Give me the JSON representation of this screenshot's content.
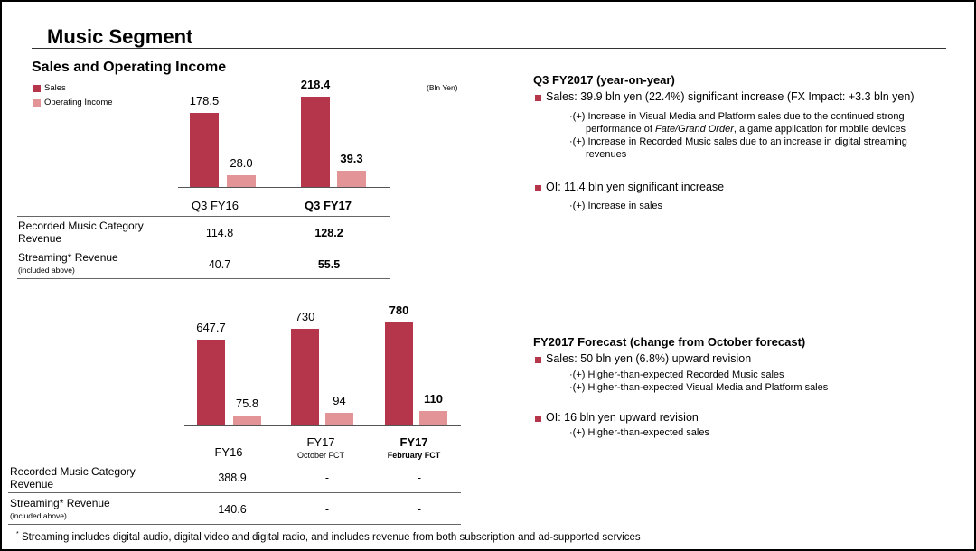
{
  "title": "Music Segment",
  "subtitle": "Sales and Operating Income",
  "legend": {
    "sales": "Sales",
    "oi": "Operating Income"
  },
  "unit": "(Bln Yen)",
  "colors": {
    "sales": "#b5364a",
    "oi": "#e39496"
  },
  "chart1": {
    "categories": [
      {
        "label": "Q3 FY16",
        "sales": "178.5",
        "oi": "28.0",
        "sales_value": 178.5,
        "oi_value": 28.0
      },
      {
        "label": "Q3 FY17",
        "sales": "218.4",
        "oi": "39.3",
        "sales_value": 218.4,
        "oi_value": 39.3
      }
    ],
    "rows": [
      {
        "label": "Recorded Music Category Revenue",
        "label_line1": "Recorded Music Category",
        "label_line2": "Revenue",
        "values": [
          "114.8",
          "128.2"
        ]
      },
      {
        "label": "Streaming* Revenue",
        "sub": "(included above)",
        "values": [
          "40.7",
          "55.5"
        ]
      }
    ]
  },
  "chart2": {
    "categories": [
      {
        "label": "FY16",
        "sub": "",
        "sales": "647.7",
        "oi": "75.8",
        "sales_value": 647.7,
        "oi_value": 75.8
      },
      {
        "label": "FY17",
        "sub": "October FCT",
        "sales": "730",
        "oi": "94",
        "sales_value": 730,
        "oi_value": 94
      },
      {
        "label": "FY17",
        "sub": "February FCT",
        "sales": "780",
        "oi": "110",
        "sales_value": 780,
        "oi_value": 110
      }
    ],
    "rows": [
      {
        "label_line1": "Recorded Music Category",
        "label_line2": "Revenue",
        "values": [
          "388.9",
          "-",
          "-"
        ]
      },
      {
        "label": "Streaming* Revenue",
        "sub": "(included above)",
        "values": [
          "140.6",
          "-",
          "-"
        ]
      }
    ]
  },
  "q3": {
    "heading": "Q3 FY2017 (year-on-year)",
    "sales": "Sales: 39.9 bln yen (22.4%) significant increase (FX Impact: +3.3 bln yen)",
    "sales_sub1_line1": "·(+) Increase in Visual Media and Platform sales due to the continued strong",
    "sales_sub1_pre": "performance of ",
    "sales_sub1_italic": "Fate/Grand Order",
    "sales_sub1_post": ", a game application for mobile devices",
    "sales_sub2_line1": "·(+) Increase in Recorded Music sales due to an increase in digital streaming",
    "sales_sub2_line2": "revenues",
    "oi": "OI: 11.4 bln yen significant increase",
    "oi_sub": "·(+) Increase in sales"
  },
  "forecast": {
    "heading": "FY2017 Forecast (change from October forecast)",
    "sales": "Sales: 50 bln yen (6.8%) upward revision",
    "sales_sub1": "·(+) Higher-than-expected Recorded Music sales",
    "sales_sub2": "·(+) Higher-than-expected Visual Media and Platform sales",
    "oi": "OI: 16 bln yen upward revision",
    "oi_sub": "·(+) Higher-than-expected sales"
  },
  "footnote_mark": "*",
  "footnote": "Streaming includes digital audio, digital video and digital radio, and includes revenue from both subscription and ad-supported services"
}
